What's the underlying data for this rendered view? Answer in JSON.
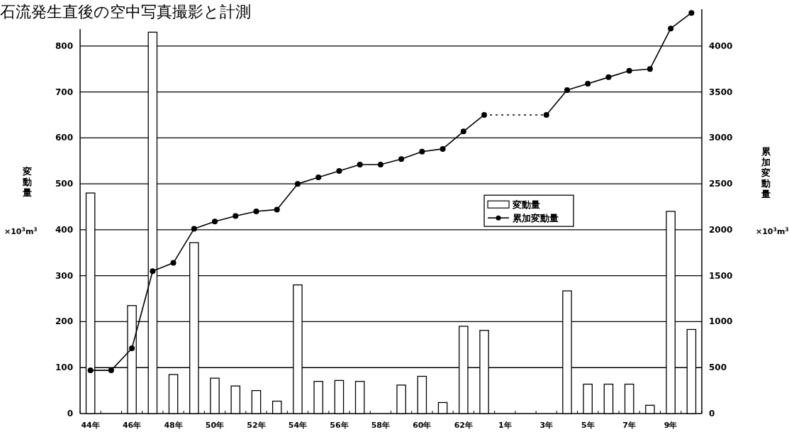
{
  "chart_data": {
    "type": "bar",
    "title": "石流発生直後の空中写真撮影と計測",
    "categories": [
      "44年",
      null,
      "46年",
      null,
      "48年",
      null,
      "50年",
      null,
      "52年",
      null,
      "54年",
      null,
      "56年",
      null,
      "58年",
      null,
      "60年",
      null,
      "62年",
      null,
      "1年",
      null,
      "3年",
      null,
      "5年",
      null,
      "7年",
      null,
      "9年",
      null
    ],
    "series": [
      {
        "name": "変動量",
        "color": "#ffffff",
        "values": [
          480,
          null,
          235,
          830,
          85,
          372,
          77,
          60,
          50,
          27,
          280,
          70,
          72,
          70,
          null,
          62,
          81,
          24,
          190,
          181,
          null,
          null,
          null,
          267,
          64,
          64,
          64,
          18,
          440,
          183
        ]
      },
      {
        "name": "累加変動量",
        "type": "line",
        "axis": "y2",
        "color": "#000000",
        "values": [
          470,
          470,
          710,
          1550,
          1640,
          2010,
          2090,
          2150,
          2200,
          2220,
          2500,
          2570,
          2640,
          2710,
          2710,
          2770,
          2850,
          2880,
          3070,
          3250,
          null,
          null,
          3250,
          3520,
          3590,
          3660,
          3730,
          3750,
          4190,
          4360
        ]
      }
    ],
    "ylabel": "変動量",
    "y2label": "累加変動量",
    "annotations": [
      "×10$^{3}$m$^{3}$",
      "×10$^{3}$m$^{3}$"
    ],
    "ylim": [
      0,
      880
    ],
    "yticks": [
      0,
      100,
      200,
      300,
      400,
      500,
      600,
      700,
      800
    ],
    "y2lim": [
      0,
      4400
    ],
    "y2ticks": [
      0,
      500,
      1000,
      1500,
      2000,
      2500,
      3000,
      3500,
      4000
    ],
    "grid": "y",
    "legend": "center",
    "marker": "circle",
    "line_style": "solid"
  }
}
